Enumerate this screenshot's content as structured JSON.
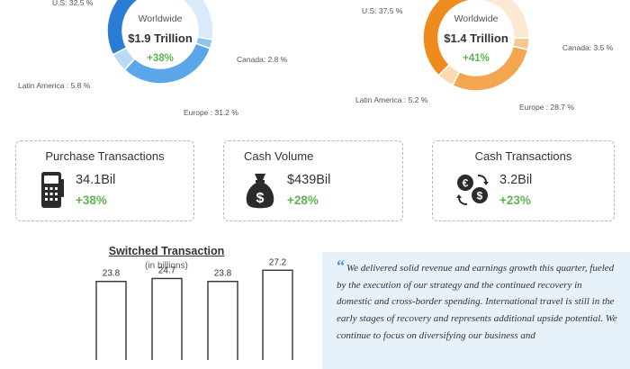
{
  "colors": {
    "blue": "#2f7fd4",
    "orange": "#f08a1e",
    "green": "#5bb74e",
    "quote_bg": "#e6f1fa"
  },
  "donuts": [
    {
      "caption": "Worldwide",
      "total": "$1.9 Trillion",
      "change": "+38%",
      "labels": {
        "us": "U.S: 32.5 %",
        "canada": "Canada: 2.8 %",
        "latam": "Latin America : 5.8 %",
        "europe": "Europe : 31.2 %"
      }
    },
    {
      "caption": "Worldwide",
      "total": "$1.4 Trillion",
      "change": "+41%",
      "labels": {
        "us": "U.S: 37.5 %",
        "canada": "Canada: 3.5 %",
        "latam": "Latin America : 5.2 %",
        "europe": "Europe : 28.7 %"
      }
    }
  ],
  "cards": [
    {
      "title": "Purchase Transactions",
      "value": "34.1Bil",
      "change": "+38%",
      "icon": "card-terminal-icon"
    },
    {
      "title": "Cash Volume",
      "value": "$439Bil",
      "change": "+28%",
      "icon": "money-bag-icon"
    },
    {
      "title": "Cash Transactions",
      "value": "3.2Bil",
      "change": "+23%",
      "icon": "currency-exchange-icon"
    }
  ],
  "chart_data": [
    {
      "type": "pie",
      "title": "",
      "center_caption": "Worldwide",
      "center_value": "$1.9 Trillion",
      "center_change": "+38%",
      "slices": [
        {
          "label": "U.S",
          "value": 32.5
        },
        {
          "label": "Canada",
          "value": 2.8
        },
        {
          "label": "Europe",
          "value": 31.2
        },
        {
          "label": "Latin America",
          "value": 5.8
        }
      ]
    },
    {
      "type": "pie",
      "title": "",
      "center_caption": "Worldwide",
      "center_value": "$1.4 Trillion",
      "center_change": "+41%",
      "slices": [
        {
          "label": "U.S",
          "value": 37.5
        },
        {
          "label": "Canada",
          "value": 3.5
        },
        {
          "label": "Europe",
          "value": 28.7
        },
        {
          "label": "Latin America",
          "value": 5.2
        }
      ]
    },
    {
      "type": "bar",
      "title": "Switched Transaction",
      "subtitle": "(in billions)",
      "categories": [
        "",
        "",
        "",
        ""
      ],
      "values": [
        23.8,
        24.7,
        23.8,
        27.2
      ],
      "data_labels": [
        "23.8",
        "24.7",
        "23.8",
        "27.2"
      ],
      "ylim": [
        0,
        30
      ],
      "grid": false
    }
  ],
  "quote": {
    "mark": "“",
    "text": "We delivered solid revenue and earnings growth this quarter, fueled by the execution of our strategy and the continued recovery in domestic and cross-border spending. International travel is still in the early stages of recovery and represents additional upside potential. We continue to focus on diversifying our business and"
  }
}
